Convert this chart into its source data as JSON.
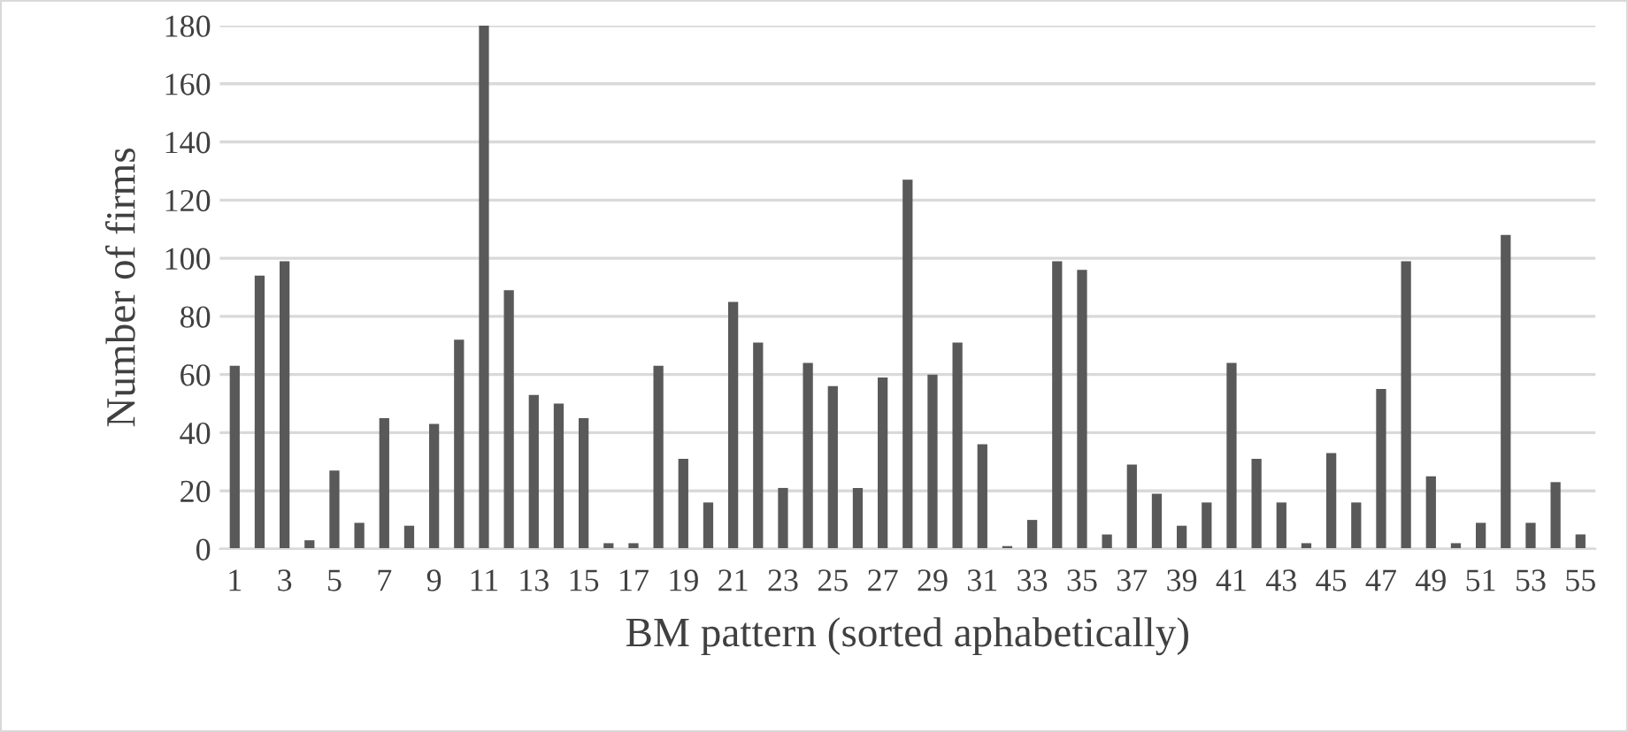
{
  "chart_data": {
    "type": "bar",
    "xlabel": "BM pattern (sorted aphabetically)",
    "ylabel": "Number of firms",
    "categories": [
      "1",
      null,
      "3",
      null,
      "5",
      null,
      "7",
      null,
      "9",
      null,
      "11",
      null,
      "13",
      null,
      "15",
      null,
      "17",
      null,
      "19",
      null,
      "21",
      null,
      "23",
      null,
      "25",
      null,
      "27",
      null,
      "29",
      null,
      "31",
      null,
      "33",
      null,
      "35",
      null,
      "37",
      null,
      "39",
      null,
      "41",
      null,
      "43",
      null,
      "45",
      null,
      "47",
      null,
      "49",
      null,
      "51",
      null,
      "53",
      null,
      "55"
    ],
    "values": [
      63,
      94,
      99,
      3,
      27,
      9,
      45,
      8,
      43,
      72,
      180,
      89,
      53,
      50,
      45,
      2,
      2,
      63,
      31,
      16,
      85,
      71,
      21,
      64,
      56,
      21,
      59,
      127,
      60,
      71,
      36,
      1,
      10,
      99,
      96,
      5,
      29,
      19,
      8,
      16,
      64,
      31,
      16,
      2,
      33,
      16,
      55,
      99,
      25,
      2,
      9,
      108,
      9,
      23,
      5
    ],
    "color": "#595959",
    "ylim": [
      0,
      180
    ],
    "yticks": [
      0,
      20,
      40,
      60,
      80,
      100,
      120,
      140,
      160,
      180
    ],
    "grid": "y"
  }
}
